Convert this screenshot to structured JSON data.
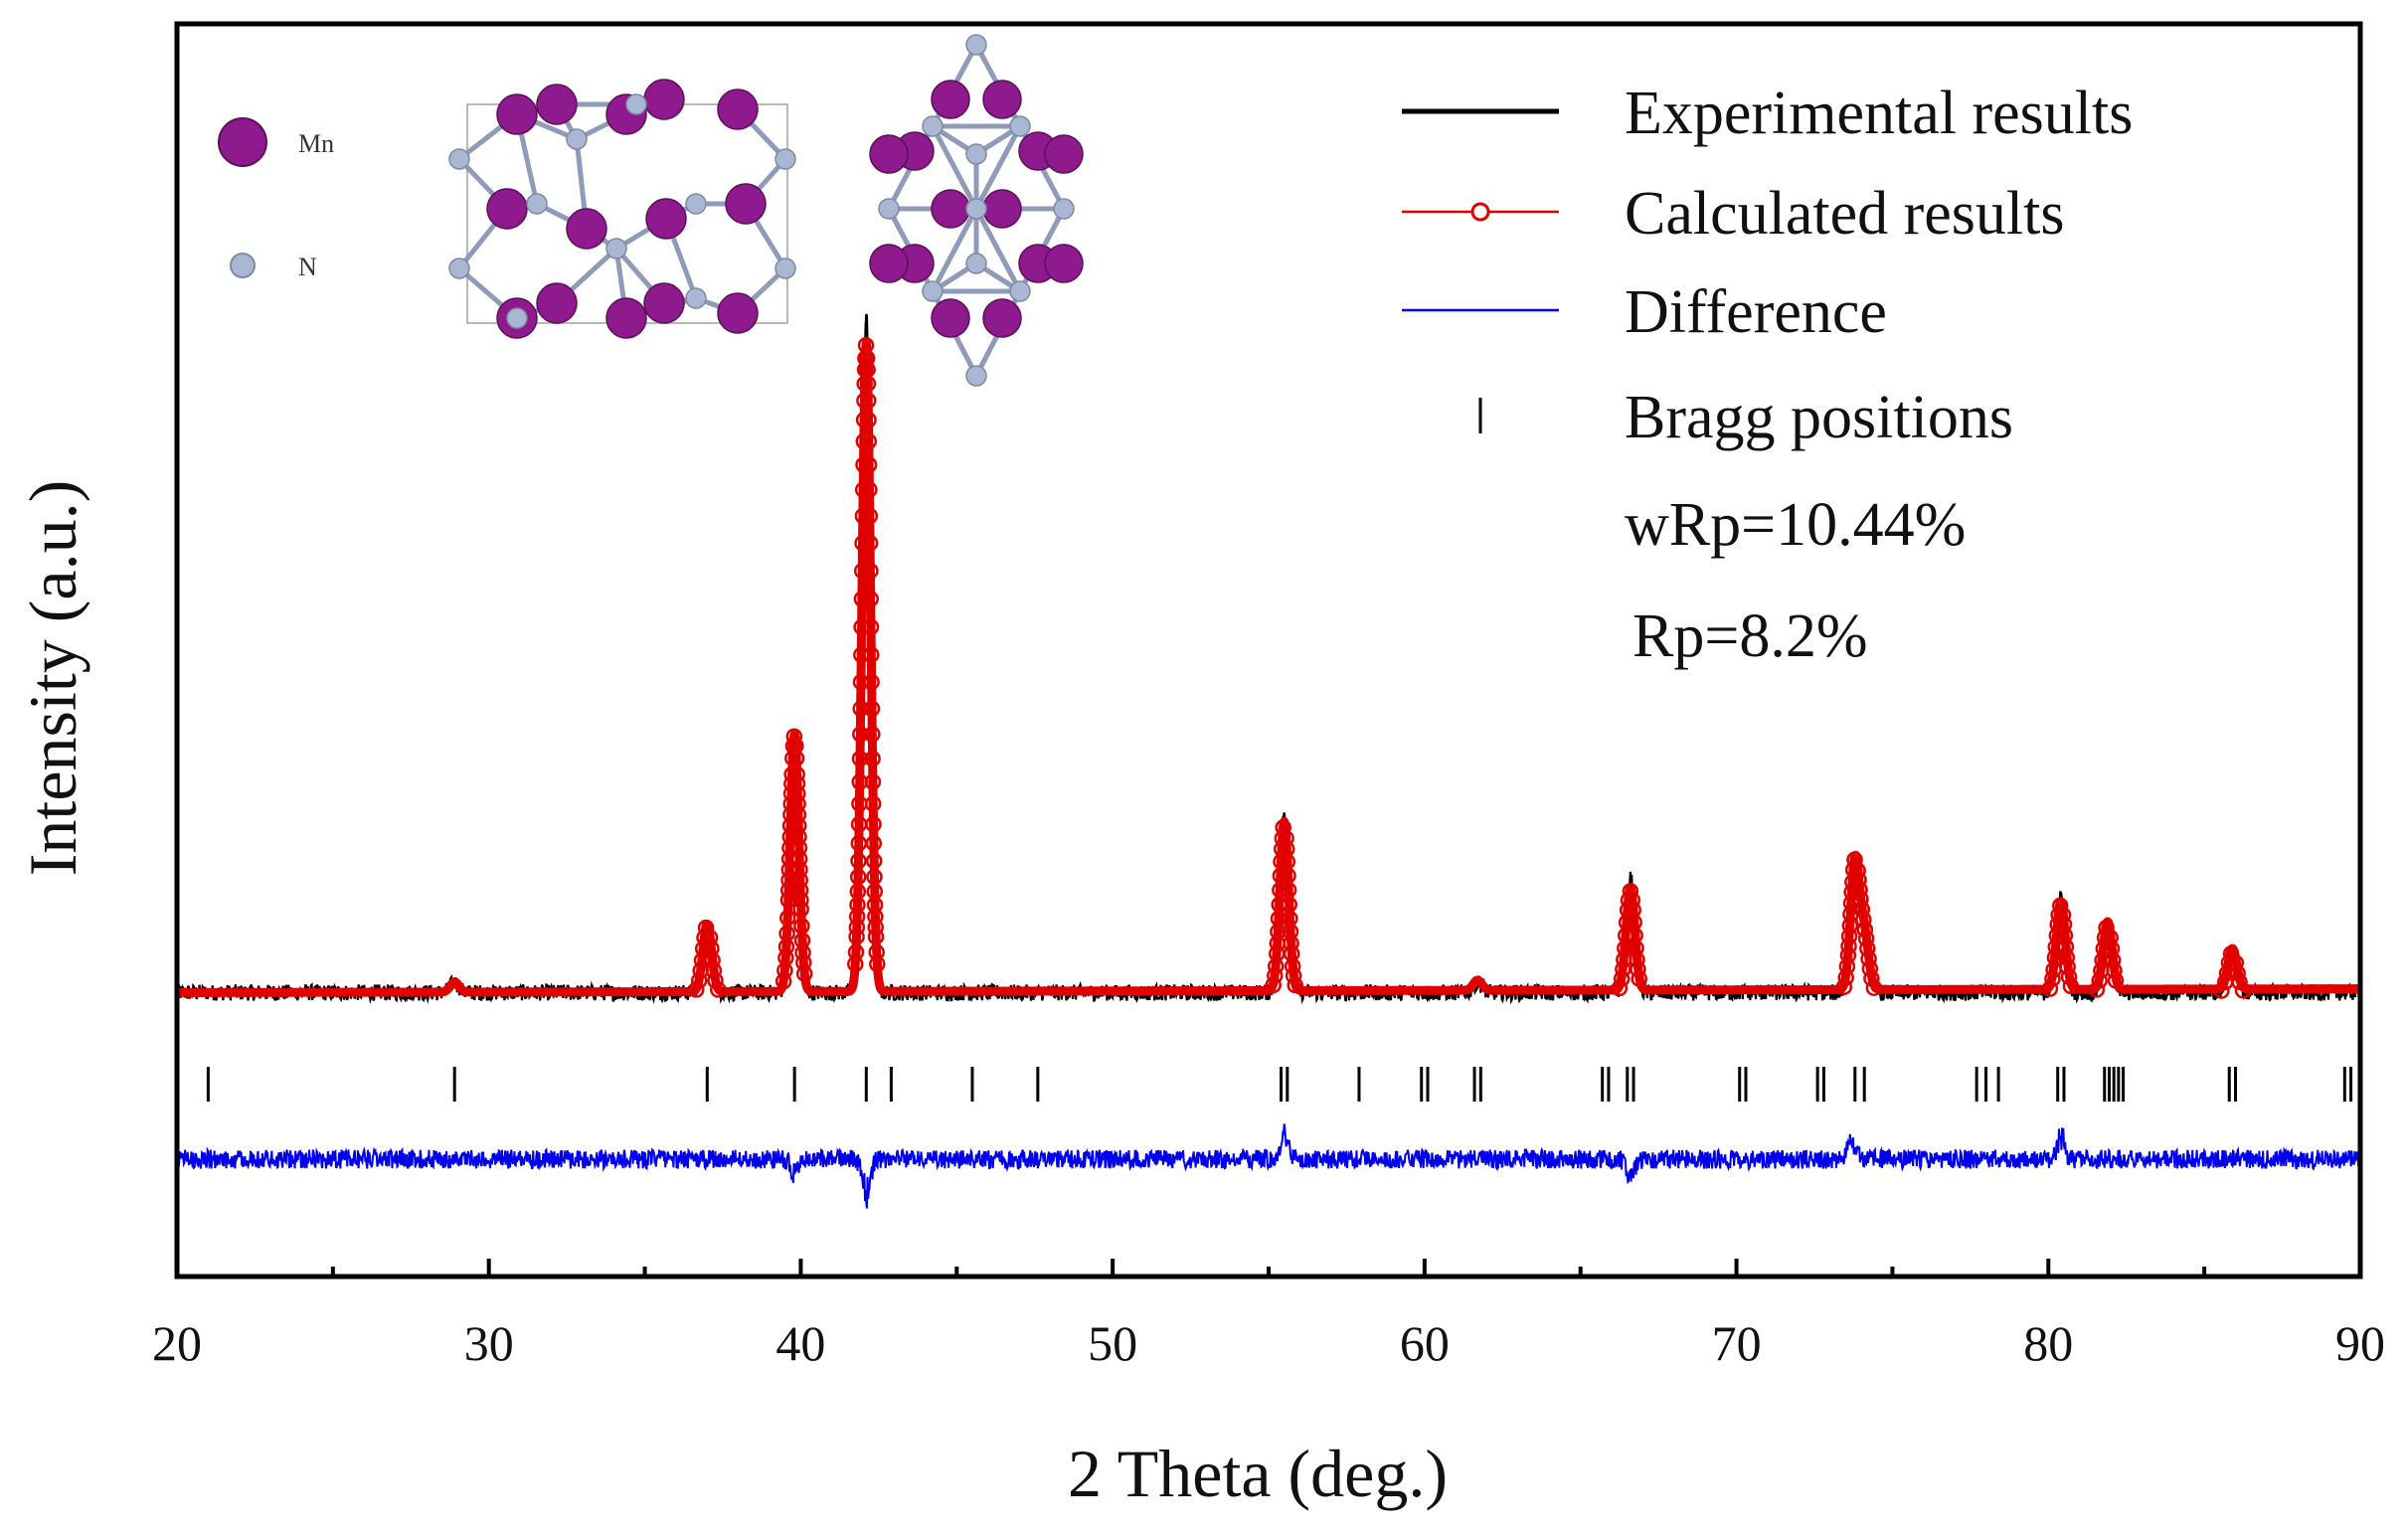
{
  "chart_data": {
    "type": "line",
    "title": "",
    "xlabel": "2 Theta (deg.)",
    "ylabel": "Intensity (a.u.)",
    "xlim": [
      20,
      90
    ],
    "x_ticks": [
      20,
      30,
      40,
      50,
      60,
      70,
      80,
      90
    ],
    "grid": false,
    "legend_position": "top-right",
    "colors": {
      "experimental": "#000000",
      "calculated": "#e00000",
      "difference": "#0000ee",
      "bragg": "#000000"
    },
    "series": [
      {
        "name": "Experimental results",
        "background": 0.02,
        "peaks": [
          {
            "x": 28.9,
            "height": 0.015
          },
          {
            "x": 37.0,
            "height": 0.1
          },
          {
            "x": 39.8,
            "height": 0.38
          },
          {
            "x": 42.1,
            "height": 1.0
          },
          {
            "x": 55.5,
            "height": 0.27
          },
          {
            "x": 61.7,
            "height": 0.015
          },
          {
            "x": 66.6,
            "height": 0.17
          },
          {
            "x": 73.8,
            "height": 0.19
          },
          {
            "x": 74.1,
            "height": 0.08
          },
          {
            "x": 80.4,
            "height": 0.14
          },
          {
            "x": 81.9,
            "height": 0.1
          },
          {
            "x": 85.9,
            "height": 0.06
          }
        ]
      },
      {
        "name": "Calculated results",
        "background": 0.02,
        "peaks": [
          {
            "x": 28.9,
            "height": 0.015
          },
          {
            "x": 37.0,
            "height": 0.1
          },
          {
            "x": 39.8,
            "height": 0.38
          },
          {
            "x": 42.1,
            "height": 0.96
          },
          {
            "x": 55.5,
            "height": 0.25
          },
          {
            "x": 61.7,
            "height": 0.015
          },
          {
            "x": 66.6,
            "height": 0.15
          },
          {
            "x": 73.8,
            "height": 0.19
          },
          {
            "x": 74.1,
            "height": 0.08
          },
          {
            "x": 80.4,
            "height": 0.13
          },
          {
            "x": 81.9,
            "height": 0.1
          },
          {
            "x": 85.9,
            "height": 0.06
          }
        ]
      },
      {
        "name": "Difference",
        "features": [
          {
            "x": 39.8,
            "amplitude": -0.02
          },
          {
            "x": 42.1,
            "amplitude": -0.05
          },
          {
            "x": 55.5,
            "amplitude": 0.035
          },
          {
            "x": 66.6,
            "amplitude": -0.025
          },
          {
            "x": 73.7,
            "amplitude": 0.025
          },
          {
            "x": 80.4,
            "amplitude": 0.035
          }
        ]
      },
      {
        "name": "Bragg positions",
        "x": [
          21.0,
          28.9,
          37.0,
          39.8,
          42.1,
          42.9,
          45.5,
          47.6,
          55.4,
          55.6,
          57.9,
          59.9,
          60.1,
          61.6,
          61.8,
          65.7,
          65.9,
          66.5,
          66.7,
          70.1,
          70.3,
          72.6,
          72.8,
          73.8,
          74.1,
          77.7,
          78.0,
          78.4,
          80.3,
          80.5,
          81.8,
          81.95,
          82.1,
          82.25,
          82.4,
          85.8,
          86.0,
          89.5,
          89.7
        ]
      }
    ],
    "legend": [
      {
        "label": "Experimental results",
        "symbol": "line"
      },
      {
        "label": "Calculated results",
        "symbol": "line-circle"
      },
      {
        "label": "Difference",
        "symbol": "line"
      },
      {
        "label": "Bragg positions",
        "symbol": "tick"
      }
    ],
    "annotations": [
      "wRp=10.44%",
      "Rp=8.2%"
    ],
    "inset": {
      "description": "crystal structure",
      "atoms": [
        {
          "label": "Mn",
          "color": "#8e1a8e"
        },
        {
          "label": "N",
          "color": "#a9b7d3"
        }
      ]
    }
  }
}
